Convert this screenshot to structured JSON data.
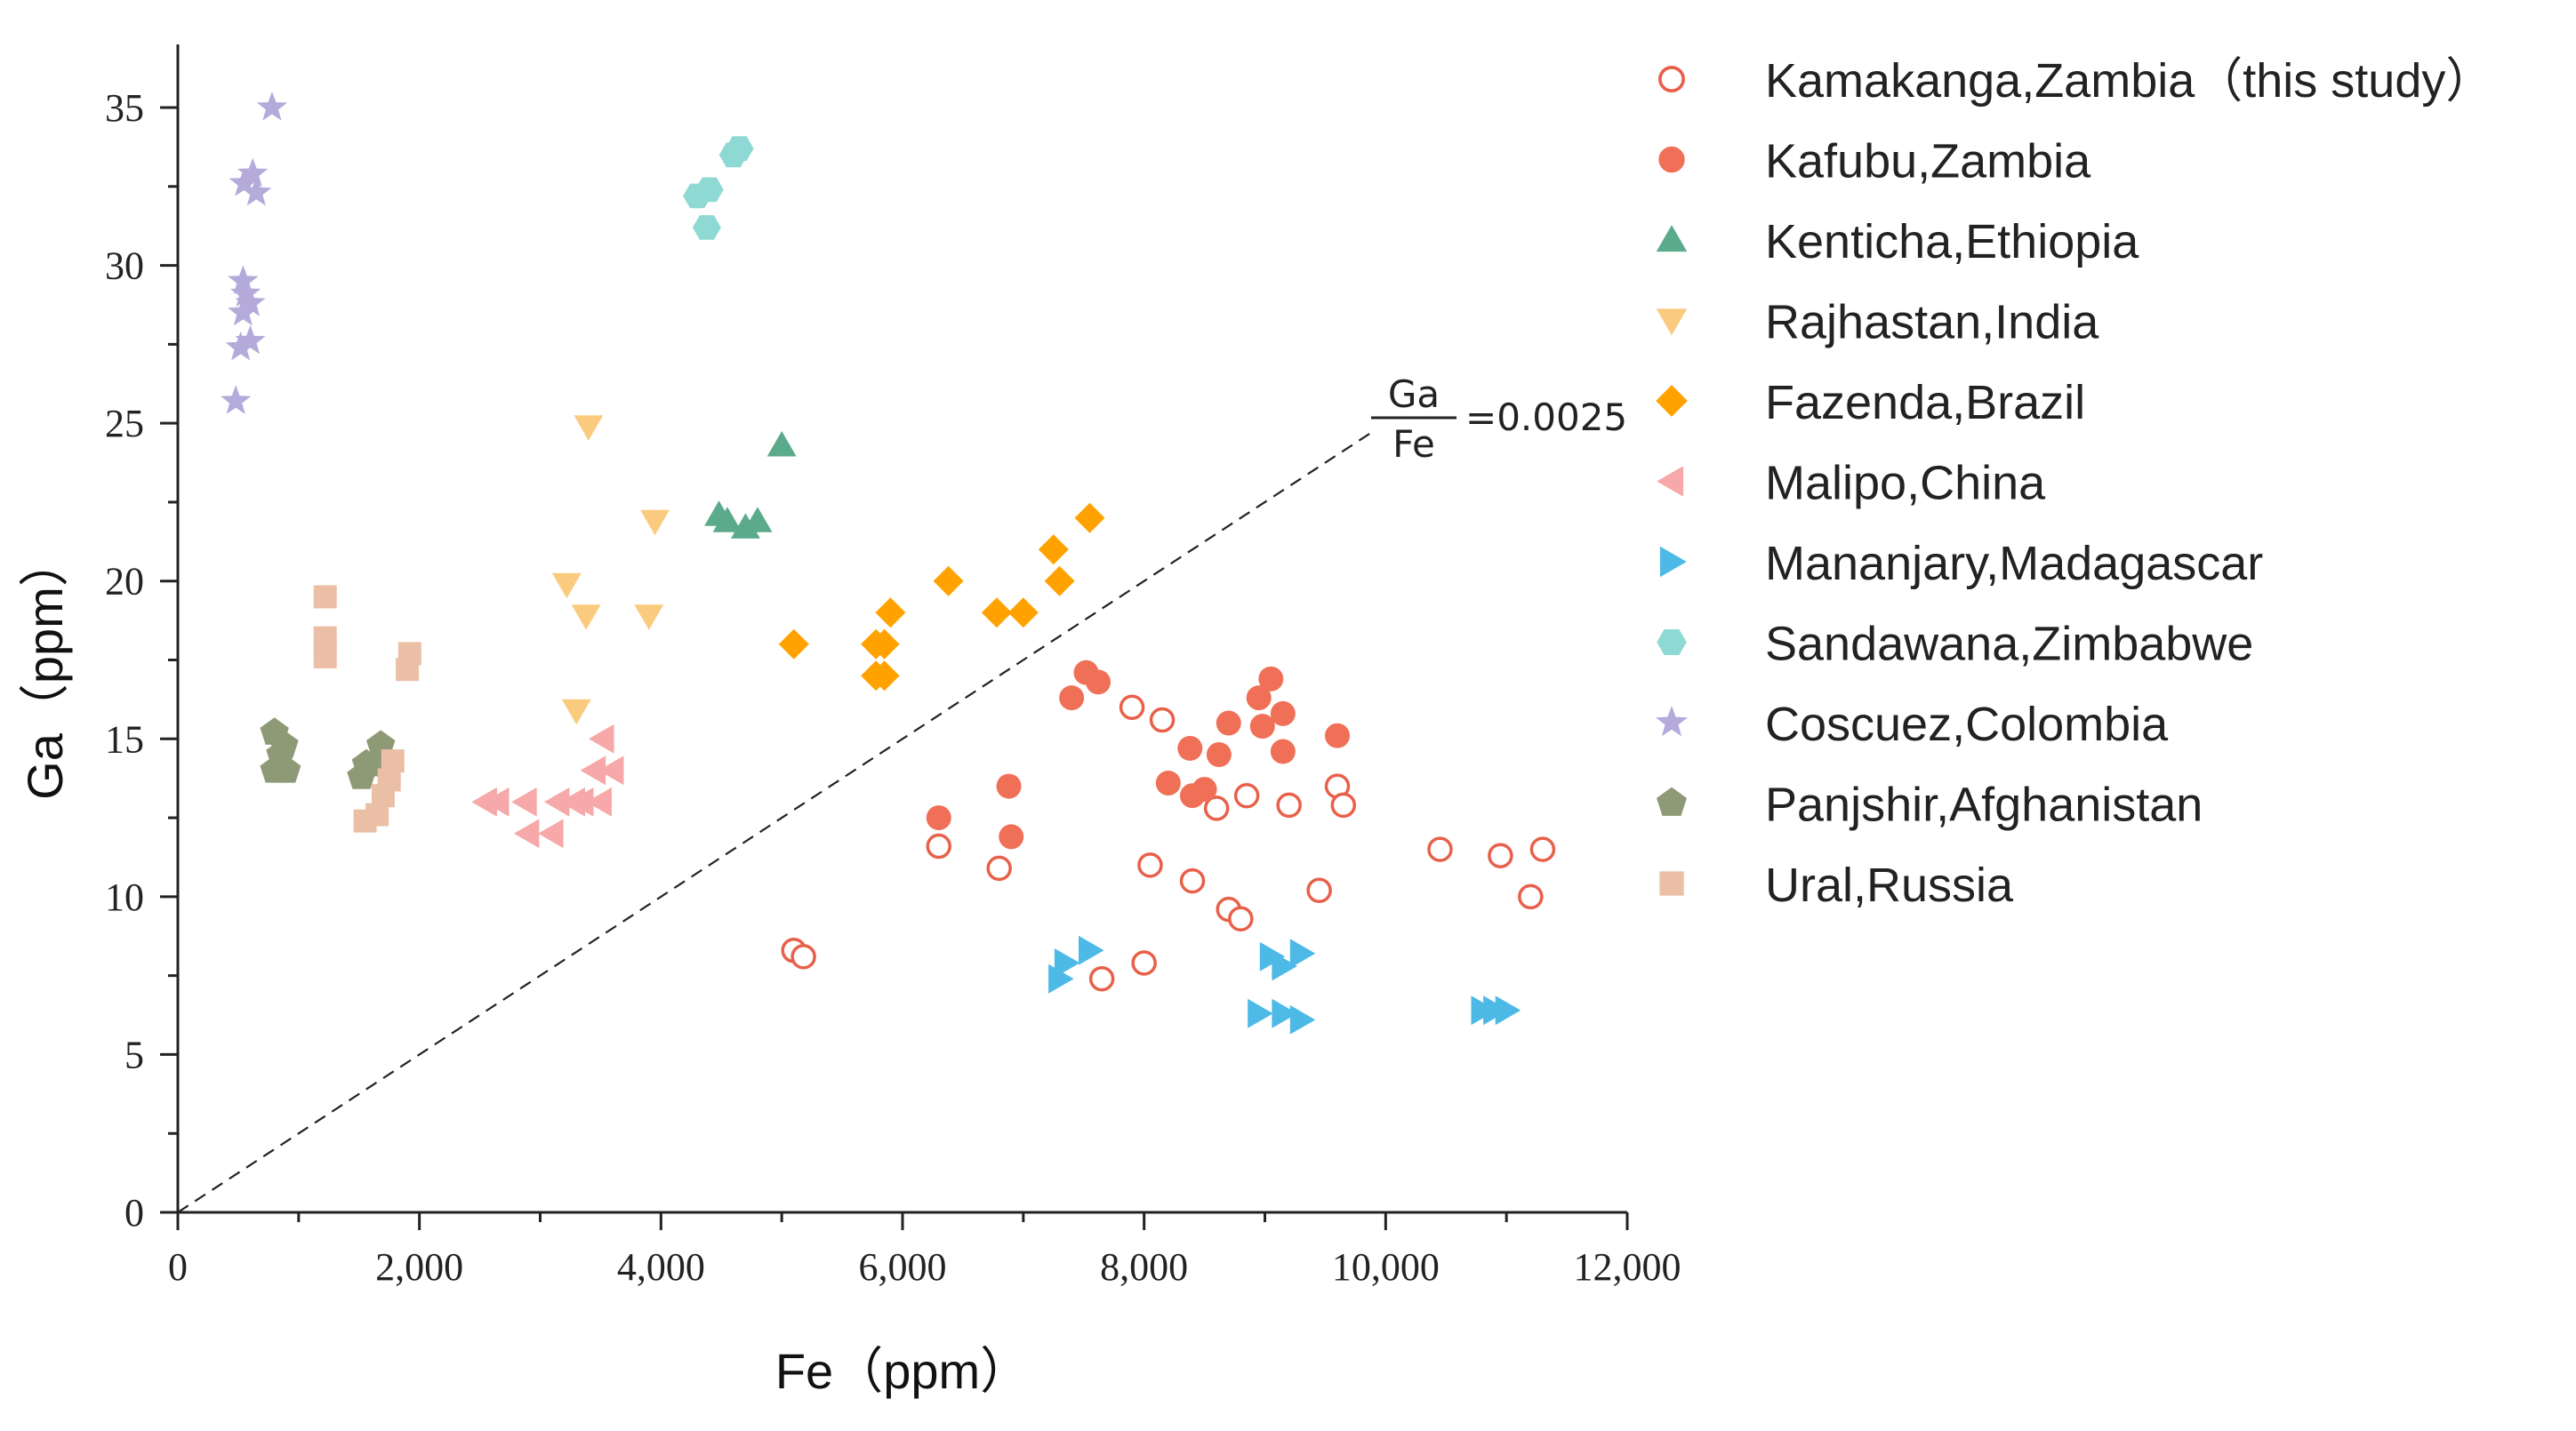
{
  "chart_data": {
    "type": "scatter",
    "xlabel": "Fe（ppm）",
    "ylabel": "Ga（ppm）",
    "xlim": [
      0,
      12000
    ],
    "ylim": [
      0,
      37
    ],
    "xticks": [
      0,
      2000,
      4000,
      6000,
      8000,
      10000,
      12000
    ],
    "xtick_labels": [
      "0",
      "2,000",
      "4,000",
      "6,000",
      "8,000",
      "10,000",
      "12,000"
    ],
    "yticks": [
      0,
      5,
      10,
      15,
      20,
      25,
      30,
      35
    ],
    "ytick_labels": [
      "0",
      "5",
      "10",
      "15",
      "20",
      "25",
      "30",
      "35"
    ],
    "grid": false,
    "legend_position": "right",
    "reference_line": {
      "slope": 0.0025,
      "x_range": [
        0,
        9900
      ],
      "numerator": "Ga",
      "denominator": "Fe",
      "value": "=0.0025",
      "style": "dashed",
      "color": "#222222"
    },
    "series": [
      {
        "name": "Kamakanga,Zambia（this study）",
        "marker": "circle-open",
        "color": "#E8604A",
        "points": [
          [
            5100,
            8.3
          ],
          [
            5180,
            8.1
          ],
          [
            6300,
            11.6
          ],
          [
            6800,
            10.9
          ],
          [
            7650,
            7.4
          ],
          [
            7900,
            16.0
          ],
          [
            8000,
            7.9
          ],
          [
            8050,
            11.0
          ],
          [
            8150,
            15.6
          ],
          [
            8400,
            10.5
          ],
          [
            8600,
            12.8
          ],
          [
            8700,
            9.6
          ],
          [
            8800,
            9.3
          ],
          [
            8850,
            13.2
          ],
          [
            9200,
            12.9
          ],
          [
            9450,
            10.2
          ],
          [
            9600,
            13.5
          ],
          [
            9650,
            12.9
          ],
          [
            10450,
            11.5
          ],
          [
            10950,
            11.3
          ],
          [
            11200,
            10.0
          ],
          [
            11300,
            11.5
          ]
        ]
      },
      {
        "name": "Kafubu,Zambia",
        "marker": "circle",
        "color": "#F07057",
        "points": [
          [
            6300,
            12.5
          ],
          [
            6880,
            13.5
          ],
          [
            6900,
            11.9
          ],
          [
            7400,
            16.3
          ],
          [
            7520,
            17.1
          ],
          [
            7620,
            16.8
          ],
          [
            8200,
            13.6
          ],
          [
            8380,
            14.7
          ],
          [
            8400,
            13.2
          ],
          [
            8500,
            13.4
          ],
          [
            8620,
            14.5
          ],
          [
            8700,
            15.5
          ],
          [
            8950,
            16.3
          ],
          [
            8980,
            15.4
          ],
          [
            9050,
            16.9
          ],
          [
            9150,
            15.8
          ],
          [
            9150,
            14.6
          ],
          [
            9600,
            15.1
          ]
        ]
      },
      {
        "name": "Kenticha,Ethiopia",
        "marker": "triangle-up",
        "color": "#5BAA8B",
        "points": [
          [
            4480,
            22.1
          ],
          [
            4550,
            21.9
          ],
          [
            4700,
            21.7
          ],
          [
            4800,
            21.9
          ],
          [
            5000,
            24.3
          ]
        ]
      },
      {
        "name": "Rajhastan,India",
        "marker": "triangle-down",
        "color": "#FACB7E",
        "points": [
          [
            3220,
            19.9
          ],
          [
            3300,
            15.9
          ],
          [
            3380,
            18.9
          ],
          [
            3400,
            24.9
          ],
          [
            3900,
            18.9
          ],
          [
            3950,
            21.9
          ]
        ]
      },
      {
        "name": "Fazenda,Brazil",
        "marker": "diamond",
        "color": "#FFA200",
        "points": [
          [
            5100,
            18.0
          ],
          [
            5780,
            18.0
          ],
          [
            5780,
            17.0
          ],
          [
            5850,
            17.0
          ],
          [
            5850,
            18.0
          ],
          [
            5900,
            19.0
          ],
          [
            6380,
            20.0
          ],
          [
            6780,
            19.0
          ],
          [
            7000,
            19.0
          ],
          [
            7250,
            21.0
          ],
          [
            7300,
            20.0
          ],
          [
            7550,
            22.0
          ]
        ]
      },
      {
        "name": "Malipo,China",
        "marker": "triangle-left",
        "color": "#F7A8A8",
        "points": [
          [
            2550,
            13.0
          ],
          [
            2650,
            13.0
          ],
          [
            2880,
            13.0
          ],
          [
            2900,
            12.0
          ],
          [
            3100,
            12.0
          ],
          [
            3150,
            13.0
          ],
          [
            3280,
            13.0
          ],
          [
            3350,
            13.0
          ],
          [
            3450,
            14.0
          ],
          [
            3500,
            13.0
          ],
          [
            3520,
            15.0
          ],
          [
            3600,
            14.0
          ]
        ]
      },
      {
        "name": "Mananjary,Madagascar",
        "marker": "triangle-right",
        "color": "#4DB9E6",
        "points": [
          [
            7300,
            7.4
          ],
          [
            7350,
            7.9
          ],
          [
            7550,
            8.3
          ],
          [
            8950,
            6.3
          ],
          [
            9050,
            8.1
          ],
          [
            9150,
            6.3
          ],
          [
            9150,
            7.8
          ],
          [
            9300,
            6.1
          ],
          [
            9300,
            8.2
          ],
          [
            10800,
            6.4
          ],
          [
            10900,
            6.4
          ],
          [
            11000,
            6.4
          ]
        ]
      },
      {
        "name": "Sandawana,Zimbabwe",
        "marker": "hexagon",
        "color": "#8ED9D4",
        "points": [
          [
            4300,
            32.2
          ],
          [
            4400,
            32.4
          ],
          [
            4380,
            31.2
          ],
          [
            4600,
            33.5
          ],
          [
            4650,
            33.7
          ]
        ]
      },
      {
        "name": "Coscuez,Colombia",
        "marker": "star",
        "color": "#B4ABDA",
        "points": [
          [
            480,
            25.7
          ],
          [
            520,
            27.4
          ],
          [
            540,
            28.5
          ],
          [
            540,
            29.5
          ],
          [
            550,
            32.6
          ],
          [
            560,
            29.1
          ],
          [
            600,
            27.6
          ],
          [
            600,
            28.8
          ],
          [
            620,
            32.9
          ],
          [
            650,
            32.3
          ],
          [
            780,
            35.0
          ]
        ]
      },
      {
        "name": "Panjshir,Afghanistan",
        "marker": "pentagon",
        "color": "#8E9975",
        "points": [
          [
            800,
            14.0
          ],
          [
            800,
            15.2
          ],
          [
            850,
            14.5
          ],
          [
            880,
            14.8
          ],
          [
            900,
            14.0
          ],
          [
            1520,
            13.8
          ],
          [
            1560,
            14.2
          ],
          [
            1680,
            14.8
          ],
          [
            1700,
            14.2
          ]
        ]
      },
      {
        "name": "Ural,Russia",
        "marker": "square",
        "color": "#EBBFA6",
        "points": [
          [
            1220,
            19.5
          ],
          [
            1220,
            18.2
          ],
          [
            1220,
            17.6
          ],
          [
            1550,
            12.4
          ],
          [
            1650,
            12.6
          ],
          [
            1700,
            13.2
          ],
          [
            1750,
            13.7
          ],
          [
            1780,
            14.3
          ],
          [
            1900,
            17.2
          ],
          [
            1920,
            17.7
          ]
        ]
      }
    ]
  }
}
